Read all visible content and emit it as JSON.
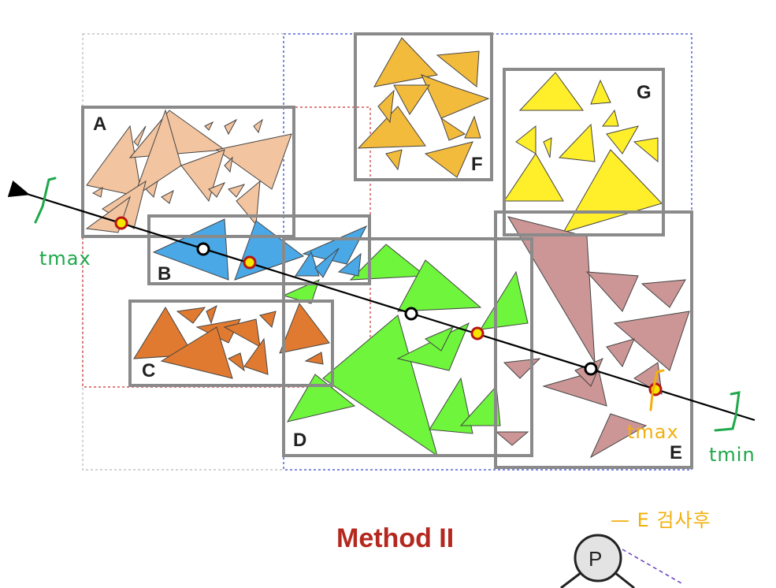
{
  "box_labels": {
    "A": "A",
    "B": "B",
    "C": "C",
    "D": "D",
    "E": "E",
    "F": "F",
    "G": "G"
  },
  "annotations": {
    "tmax_left": "tmax",
    "tmax_right": "tmax",
    "tmin": "tmin",
    "e_note": "— E 검사후"
  },
  "title": "Method II",
  "tree_node": "P",
  "colors": {
    "A": "#f2c4a0",
    "B": "#4aa8e6",
    "C": "#e07a30",
    "D": "#6ef53c",
    "E": "#cc9696",
    "F": "#f3bb3c",
    "G": "#ffee2a",
    "bbox": "#8a8a8a",
    "ray": "#000000",
    "title": "#b5281f",
    "hand_green": "#1fa84b",
    "hand_orange": "#f2b00e"
  }
}
